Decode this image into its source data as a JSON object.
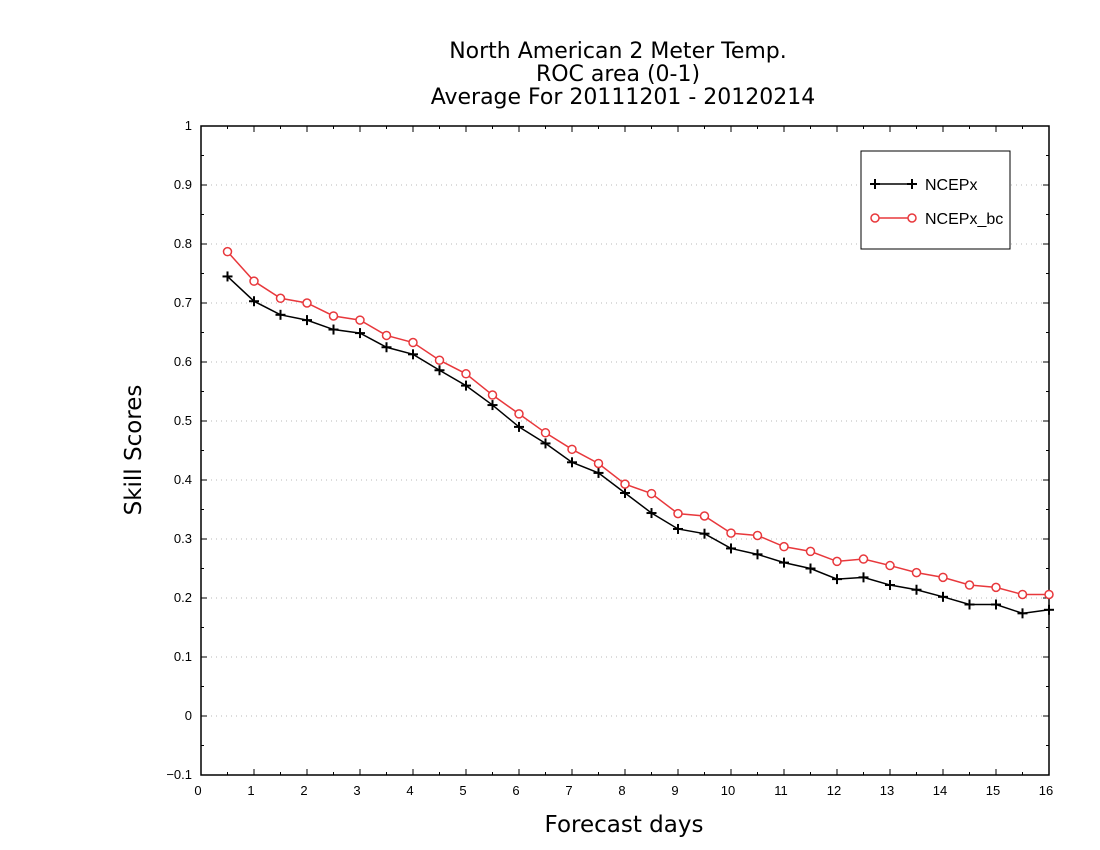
{
  "chart_data": {
    "type": "line",
    "title": [
      "North American 2 Meter Temp.",
      "ROC area (0-1)",
      "Average For 20111201 - 20120214"
    ],
    "xlabel": "Forecast days",
    "ylabel": "Skill Scores",
    "xlim": [
      0,
      16
    ],
    "ylim": [
      -0.1,
      1
    ],
    "xticks": [
      "0",
      "1",
      "2",
      "3",
      "4",
      "5",
      "6",
      "7",
      "8",
      "9",
      "10",
      "11",
      "12",
      "13",
      "14",
      "15",
      "16"
    ],
    "yticks": [
      "−0.1",
      "0",
      "0.1",
      "0.2",
      "0.3",
      "0.4",
      "0.5",
      "0.6",
      "0.7",
      "0.8",
      "0.9",
      "1"
    ],
    "grid": true,
    "legend_position": "top-right",
    "x": [
      0.5,
      1,
      1.5,
      2,
      2.5,
      3,
      3.5,
      4,
      4.5,
      5,
      5.5,
      6,
      6.5,
      7,
      7.5,
      8,
      8.5,
      9,
      9.5,
      10,
      10.5,
      11,
      11.5,
      12,
      12.5,
      13,
      13.5,
      14,
      14.5,
      15,
      15.5,
      16
    ],
    "series": [
      {
        "name": "NCEPx",
        "color": "#000000",
        "marker": "plus",
        "values": [
          0.745,
          0.703,
          0.68,
          0.671,
          0.655,
          0.649,
          0.625,
          0.613,
          0.586,
          0.56,
          0.527,
          0.49,
          0.462,
          0.43,
          0.412,
          0.378,
          0.344,
          0.317,
          0.309,
          0.284,
          0.274,
          0.26,
          0.25,
          0.232,
          0.235,
          0.222,
          0.214,
          0.202,
          0.189,
          0.189,
          0.174,
          0.18
        ]
      },
      {
        "name": "NCEPx_bc",
        "color": "#e8383c",
        "marker": "circle",
        "values": [
          0.787,
          0.737,
          0.708,
          0.7,
          0.678,
          0.671,
          0.645,
          0.633,
          0.603,
          0.58,
          0.544,
          0.512,
          0.48,
          0.452,
          0.428,
          0.393,
          0.377,
          0.343,
          0.339,
          0.31,
          0.306,
          0.287,
          0.279,
          0.262,
          0.266,
          0.255,
          0.243,
          0.235,
          0.222,
          0.218,
          0.206,
          0.206
        ]
      }
    ]
  }
}
